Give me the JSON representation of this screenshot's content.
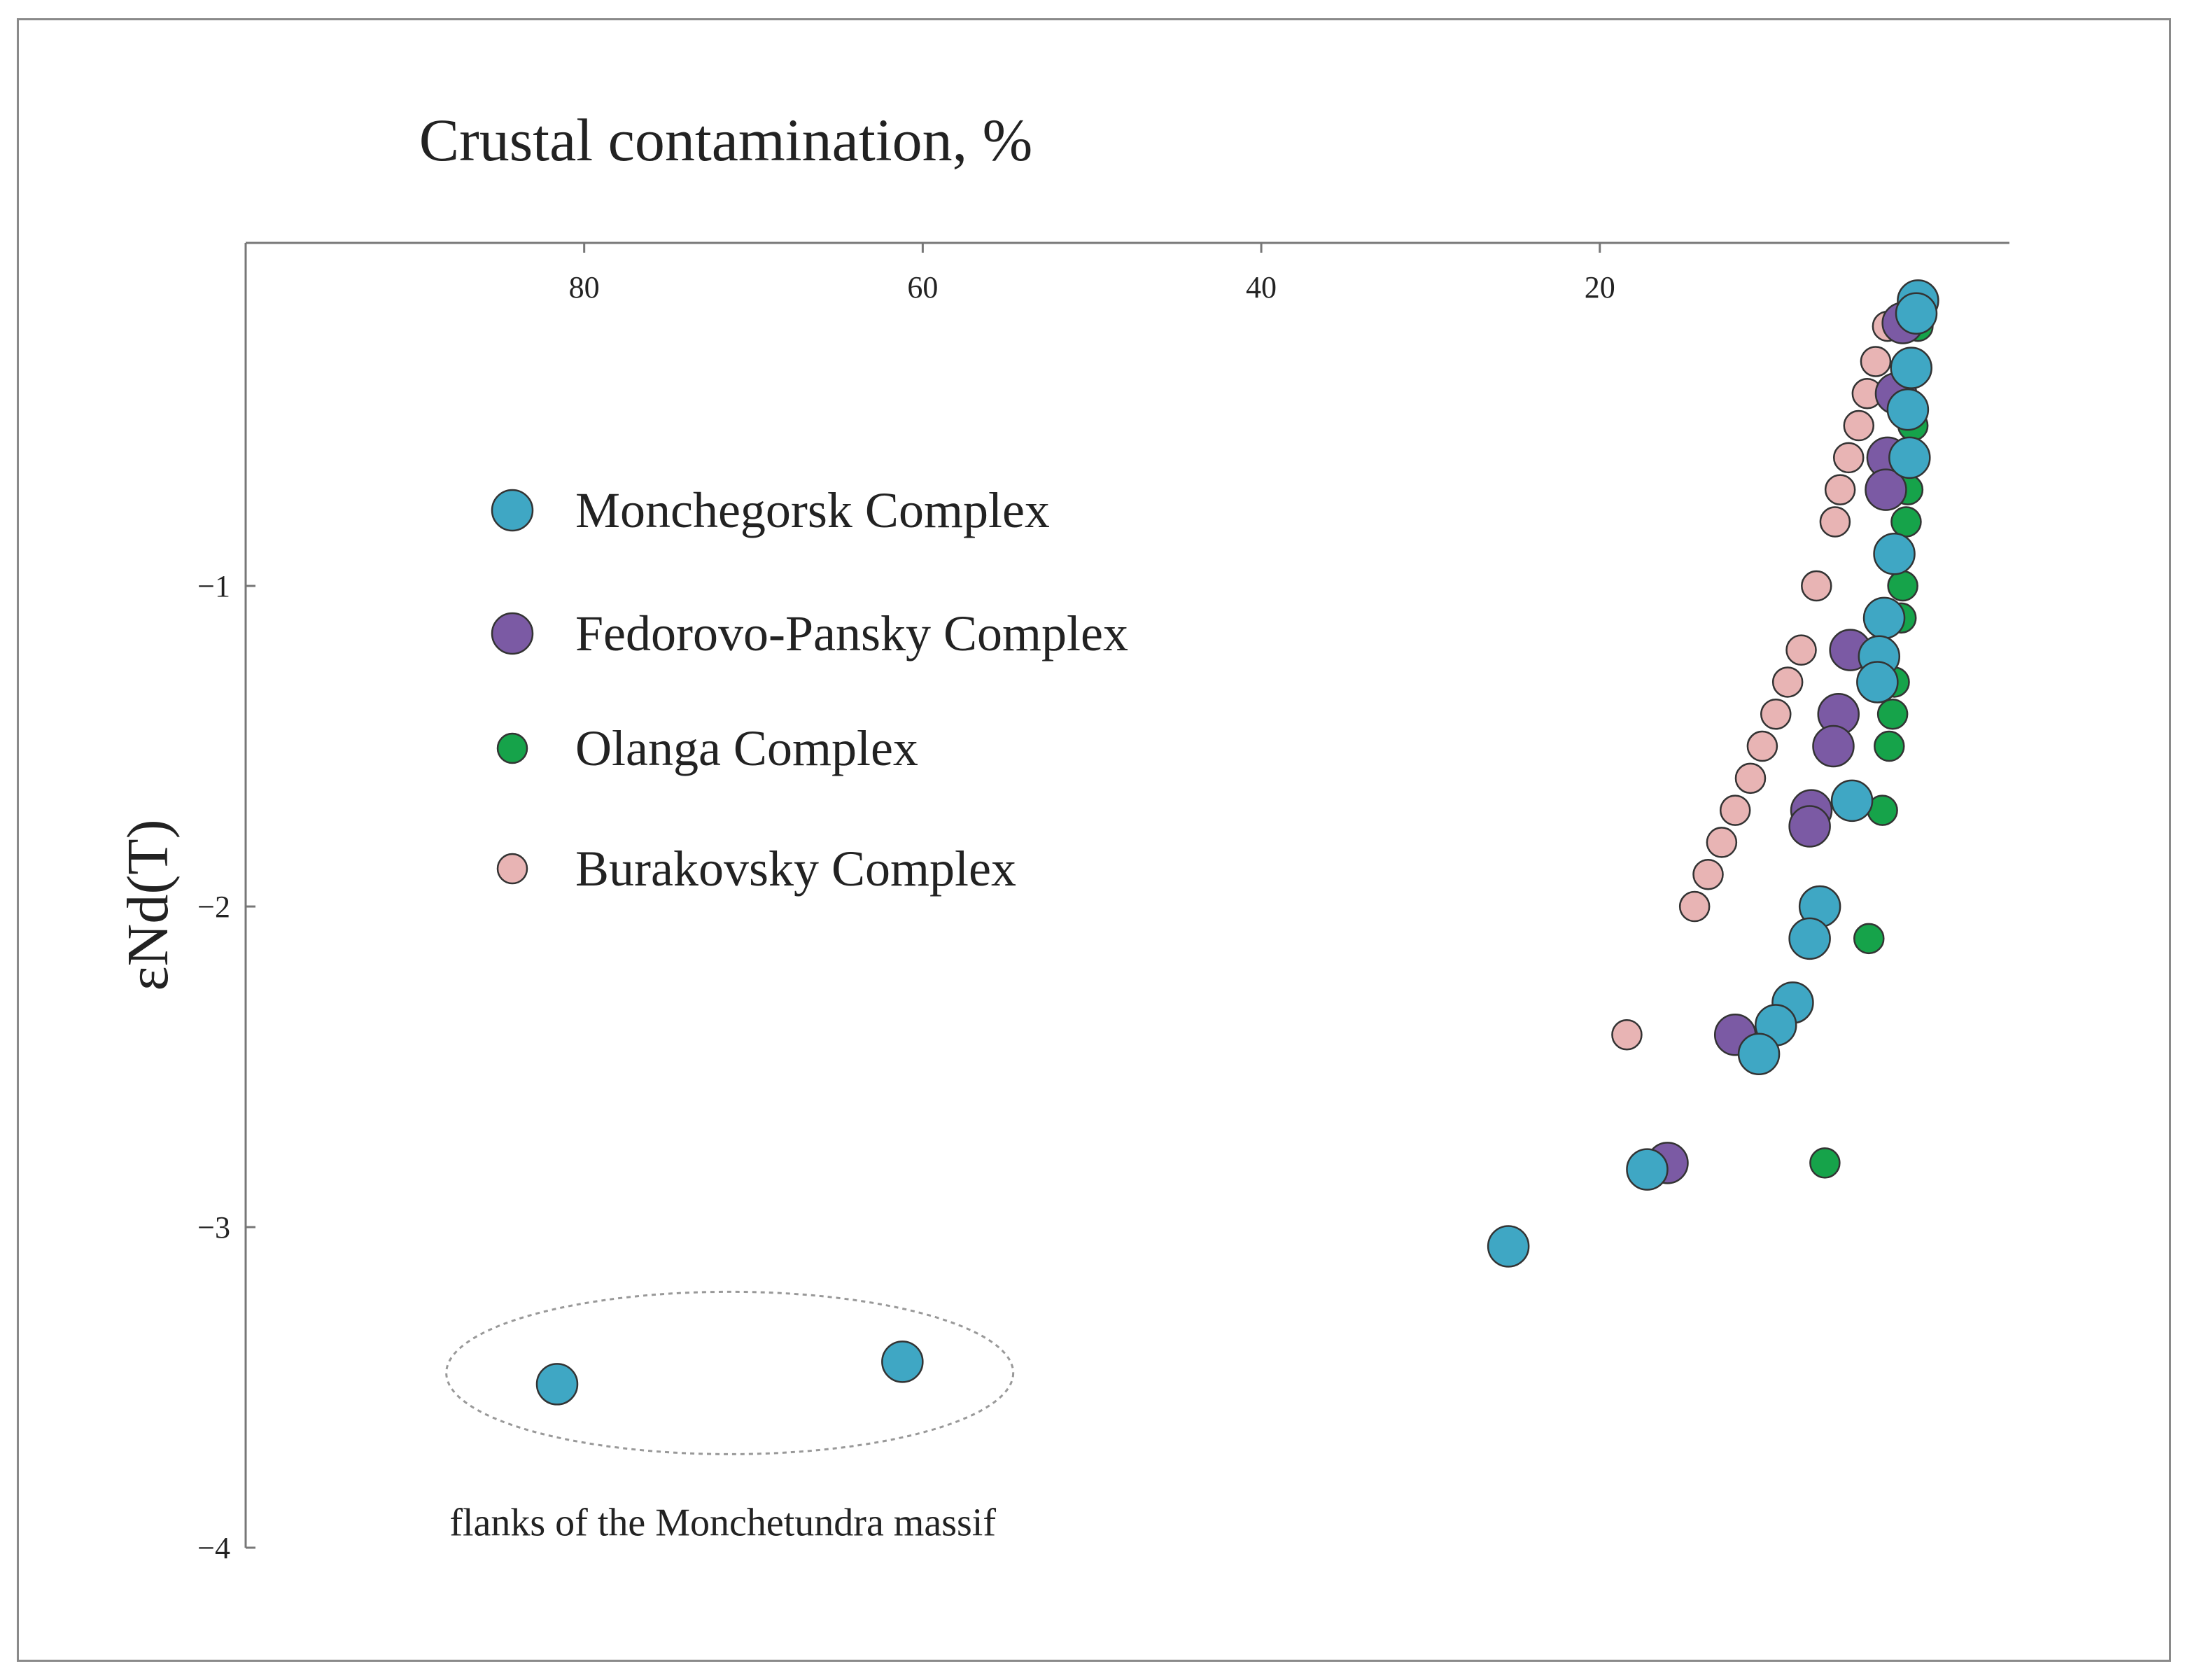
{
  "chart_data": {
    "type": "scatter",
    "title": "Crustal contamination, %",
    "xlabel": "",
    "ylabel": "εNd(T)",
    "xlim": [
      100,
      -4.2
    ],
    "ylim": [
      -4,
      0.07
    ],
    "xticks": [
      80,
      60,
      40,
      20
    ],
    "xtick_labels": [
      "80",
      "60",
      "40",
      "20"
    ],
    "yticks": [
      -1,
      -2,
      -3,
      -4
    ],
    "ytick_labels": [
      "−1",
      "−2",
      "−3",
      "−4"
    ],
    "grid": false,
    "legend_position": "upper-left",
    "series": [
      {
        "name": "Monchegorsk Complex",
        "color": "#3fa7c4",
        "marker": "circle-large",
        "points": [
          [
            1.2,
            -0.11
          ],
          [
            1.3,
            -0.15
          ],
          [
            1.6,
            -0.32
          ],
          [
            1.8,
            -0.45
          ],
          [
            1.7,
            -0.6
          ],
          [
            2.6,
            -0.9
          ],
          [
            3.2,
            -1.1
          ],
          [
            3.5,
            -1.22
          ],
          [
            3.6,
            -1.3
          ],
          [
            5.1,
            -1.67
          ],
          [
            7.0,
            -2.0
          ],
          [
            7.6,
            -2.1
          ],
          [
            8.6,
            -2.3
          ],
          [
            9.6,
            -2.37
          ],
          [
            10.6,
            -2.46
          ],
          [
            17.2,
            -2.82
          ],
          [
            25.4,
            -3.06
          ],
          [
            61.2,
            -3.42
          ],
          [
            81.6,
            -3.49
          ]
        ]
      },
      {
        "name": "Fedorovo-Pansky Complex",
        "color": "#7b5aa4",
        "marker": "circle-large",
        "points": [
          [
            2.1,
            -0.18
          ],
          [
            2.5,
            -0.4
          ],
          [
            3.0,
            -0.6
          ],
          [
            3.1,
            -0.7
          ],
          [
            5.2,
            -1.2
          ],
          [
            5.9,
            -1.4
          ],
          [
            6.2,
            -1.5
          ],
          [
            7.5,
            -1.7
          ],
          [
            7.6,
            -1.75
          ],
          [
            12.0,
            -2.4
          ],
          [
            16.0,
            -2.8
          ]
        ]
      },
      {
        "name": "Olanga Complex",
        "color": "#16a34a",
        "marker": "circle-small",
        "points": [
          [
            1.2,
            -0.19
          ],
          [
            1.5,
            -0.5
          ],
          [
            1.8,
            -0.7
          ],
          [
            1.9,
            -0.8
          ],
          [
            2.1,
            -1.0
          ],
          [
            2.2,
            -1.1
          ],
          [
            2.6,
            -1.3
          ],
          [
            2.7,
            -1.4
          ],
          [
            2.9,
            -1.5
          ],
          [
            3.3,
            -1.7
          ],
          [
            4.1,
            -2.1
          ],
          [
            6.7,
            -2.8
          ]
        ]
      },
      {
        "name": "Burakovsky Complex",
        "color": "#e8b4b4",
        "marker": "circle-small",
        "points": [
          [
            3.0,
            -0.19
          ],
          [
            3.7,
            -0.3
          ],
          [
            4.2,
            -0.4
          ],
          [
            4.7,
            -0.5
          ],
          [
            5.3,
            -0.6
          ],
          [
            5.8,
            -0.7
          ],
          [
            6.1,
            -0.8
          ],
          [
            7.2,
            -1.0
          ],
          [
            8.1,
            -1.2
          ],
          [
            8.9,
            -1.3
          ],
          [
            9.6,
            -1.4
          ],
          [
            10.4,
            -1.5
          ],
          [
            11.1,
            -1.6
          ],
          [
            12.0,
            -1.7
          ],
          [
            12.8,
            -1.8
          ],
          [
            13.6,
            -1.9
          ],
          [
            14.4,
            -2.0
          ],
          [
            18.4,
            -2.4
          ]
        ]
      }
    ],
    "annotations": [
      {
        "text": "flanks of the Monchetundra massif",
        "encloses": [
          [
            61.2,
            -3.42
          ],
          [
            81.6,
            -3.49
          ]
        ]
      }
    ]
  }
}
